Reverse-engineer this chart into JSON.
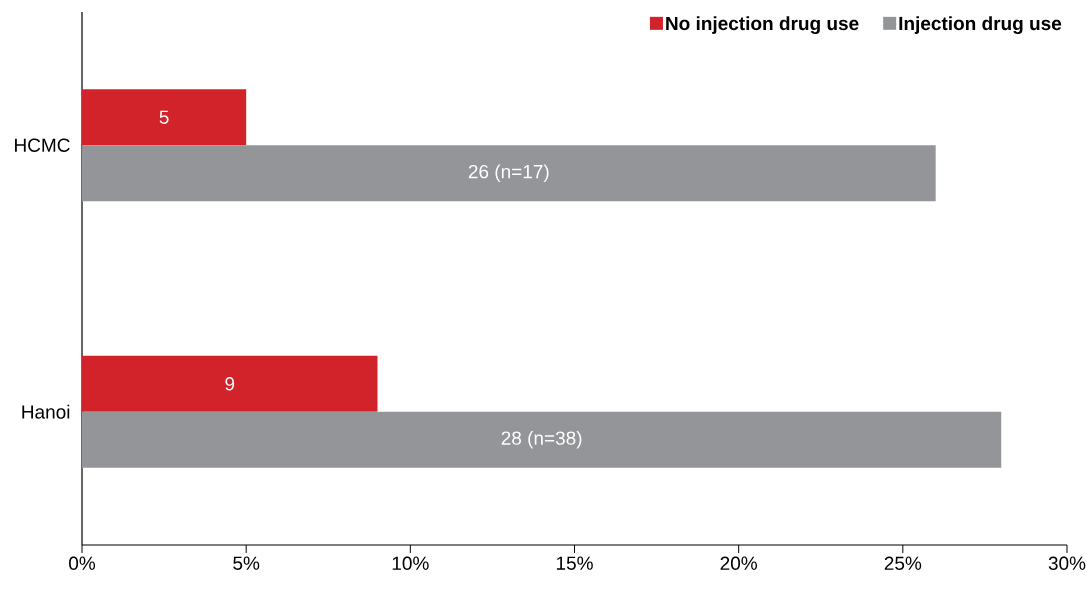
{
  "chart_data": {
    "type": "bar",
    "orientation": "horizontal",
    "categories": [
      "HCMC",
      "Hanoi"
    ],
    "series": [
      {
        "name": "No injection drug use",
        "color": "#d2232a",
        "values": [
          5,
          9
        ],
        "value_labels": [
          "5",
          "9"
        ]
      },
      {
        "name": "Injection drug use",
        "color": "#939598",
        "values": [
          26,
          28
        ],
        "value_labels": [
          "26 (n=17)",
          "28 (n=38)"
        ]
      }
    ],
    "xlim": [
      0,
      30
    ],
    "xticks": [
      {
        "value": 0,
        "label": "0%"
      },
      {
        "value": 5,
        "label": "5%"
      },
      {
        "value": 10,
        "label": "10%"
      },
      {
        "value": 15,
        "label": "15%"
      },
      {
        "value": 20,
        "label": "20%"
      },
      {
        "value": 25,
        "label": "25%"
      },
      {
        "value": 30,
        "label": "30%"
      }
    ],
    "legend": "top right"
  }
}
